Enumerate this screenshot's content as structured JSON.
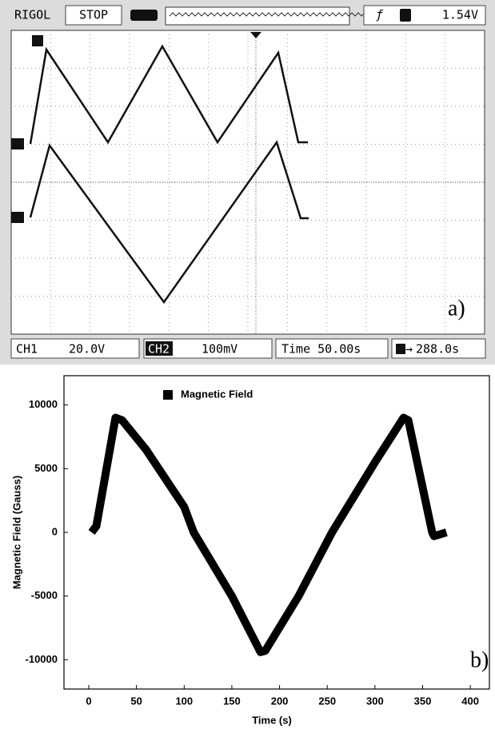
{
  "scope": {
    "brand": "RIGOL",
    "status": "STOP",
    "trigger_level": "1.54V",
    "ch1_label": "CH1",
    "ch1_scale": "20.0V",
    "ch2_label": "CH2",
    "ch2_scale": "100mV",
    "timebase": "Time 50.00s",
    "trigger_pos": "288.0s",
    "panel_label": "a)"
  },
  "chart_data": {
    "type": "line",
    "panel_label": "b)",
    "x_label": "Time (s)",
    "y_label": "Magnetic Field (Gauss)",
    "x": [
      3,
      8,
      28,
      35,
      60,
      100,
      110,
      150,
      180,
      185,
      220,
      255,
      300,
      330,
      335,
      360,
      362,
      375
    ],
    "series": [
      {
        "name": "Magnetic Field",
        "color": "#000000",
        "values": [
          0,
          500,
          9000,
          8800,
          6500,
          2000,
          0,
          -5000,
          -9400,
          -9300,
          -5000,
          0,
          5500,
          9000,
          8800,
          0,
          -300,
          0
        ]
      }
    ],
    "xlim": [
      -26,
      420
    ],
    "ylim": [
      -12300,
      12300
    ],
    "xticks": [
      0,
      50,
      100,
      150,
      200,
      250,
      300,
      350,
      400
    ],
    "yticks": [
      -10000,
      -5000,
      0,
      5000,
      10000
    ],
    "grid": false,
    "legend": "top-left"
  }
}
